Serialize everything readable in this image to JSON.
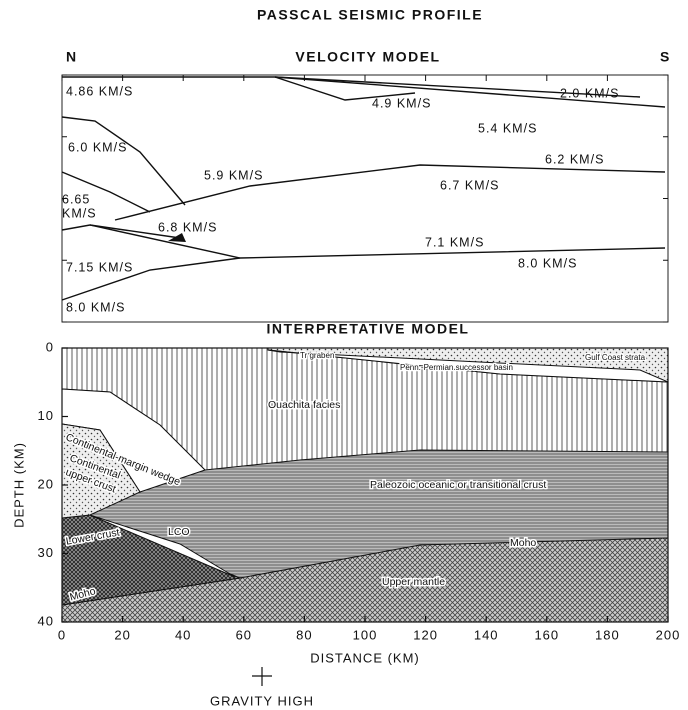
{
  "title": "PASSCAL SEISMIC PROFILE",
  "velocity_model": {
    "title": "VELOCITY MODEL",
    "north": "N",
    "south": "S",
    "labels": [
      "4.86 KM/S",
      "4.9 KM/S",
      "2.0 KM/S",
      "5.4 KM/S",
      "6.0 KM/S",
      "5.9 KM/S",
      "6.2 KM/S",
      "6.65",
      "KM/S",
      "6.7 KM/S",
      "6.8 KM/S",
      "7.1 KM/S",
      "7.15 KM/S",
      "8.0 KM/S",
      "8.0 KM/S"
    ]
  },
  "interpretative_model": {
    "title": "INTERPRETATIVE MODEL",
    "y_label": "DEPTH (KM)",
    "x_label": "DISTANCE (KM)",
    "xlim": [
      0,
      200
    ],
    "xticks": [
      0,
      20,
      40,
      60,
      80,
      100,
      120,
      140,
      160,
      180,
      200
    ],
    "ylim": [
      0,
      40
    ],
    "yticks": [
      0,
      10,
      20,
      30,
      40
    ],
    "units": [
      "Tr graben",
      "Penn.-Permian successor basin",
      "Gulf Coast strata",
      "Ouachita facies",
      "Continental-margin wedge",
      "Continental",
      "upper crust",
      "Paleozoic oceanic or transitional crust",
      "LCO",
      "Lower crust",
      "Moho",
      "Moho",
      "Upper mantle"
    ]
  },
  "gravity_label": "GRAVITY HIGH"
}
